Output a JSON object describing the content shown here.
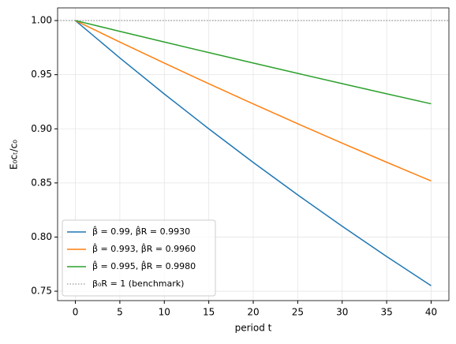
{
  "chart_data": {
    "type": "line",
    "xlabel": "period t",
    "ylabel": "E₀cₜ/c₀",
    "x": [
      0,
      5,
      10,
      15,
      20,
      25,
      30,
      35,
      40
    ],
    "series": [
      {
        "name": "β̂ = 0.99, β̂R = 0.9930",
        "color": "#1f77b4",
        "values": [
          1.0,
          0.96549,
          0.93217,
          0.9,
          0.86893,
          0.83894,
          0.80999,
          0.78204,
          0.75505
        ]
      },
      {
        "name": "β̂ = 0.993, β̂R = 0.9960",
        "color": "#ff7f0e",
        "values": [
          1.0,
          0.98016,
          0.96071,
          0.94165,
          0.92297,
          0.90466,
          0.88671,
          0.86912,
          0.85188
        ]
      },
      {
        "name": "β̂ = 0.995, β̂R = 0.9980",
        "color": "#2ca02c",
        "values": [
          1.0,
          0.99004,
          0.98019,
          0.97043,
          0.96077,
          0.95121,
          0.94174,
          0.93237,
          0.92309
        ]
      }
    ],
    "hline": {
      "name": "β₀R = 1 (benchmark)",
      "value": 1,
      "color": "#808080"
    },
    "xlim": [
      -2,
      42
    ],
    "ylim": [
      0.7413,
      1.0117
    ],
    "xticks": [
      0,
      5,
      10,
      15,
      20,
      25,
      30,
      35,
      40
    ],
    "yticks": [
      0.75,
      {
        "value": 0.8,
        "label": "0.80"
      },
      0.85,
      {
        "value": 0.9,
        "label": "0.90"
      },
      0.95,
      {
        "value": 1,
        "label": "1.00"
      }
    ],
    "grid": true,
    "legend": "lower left"
  }
}
